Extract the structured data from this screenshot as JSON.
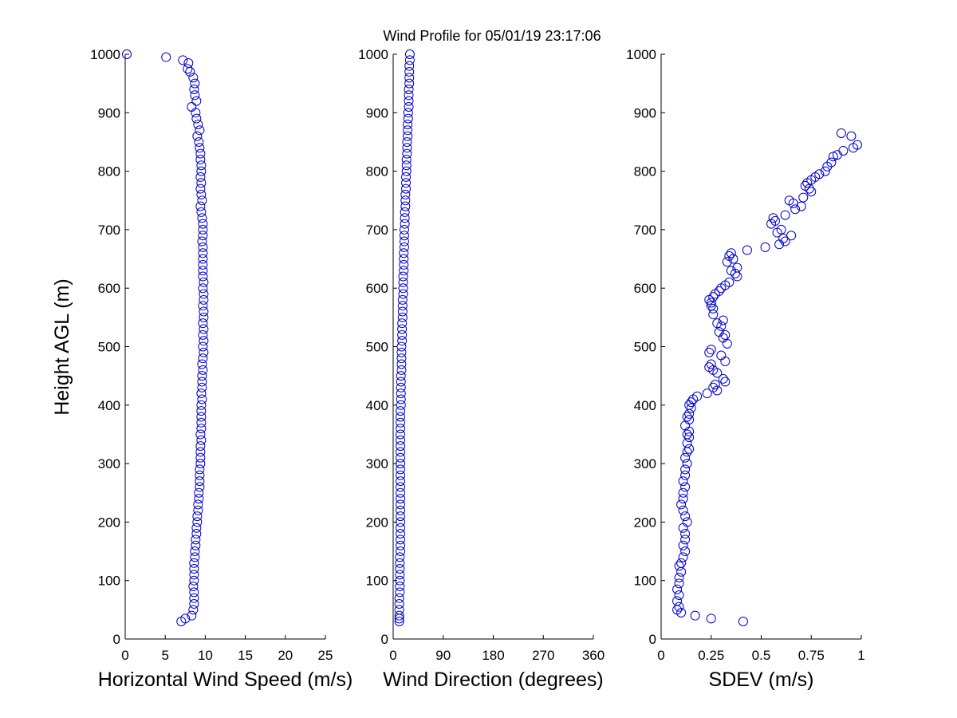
{
  "chart_data": {
    "title": "Wind Profile for  05/01/19 23:17:06",
    "ylabel": "Height AGL (m)",
    "marker_color": "#0000cc",
    "panels": [
      {
        "type": "scatter",
        "xlabel": "Horizontal Wind Speed (m/s)",
        "xlim": [
          0,
          25
        ],
        "xticks": [
          "0",
          "5",
          "10",
          "15",
          "20",
          "25"
        ],
        "ylim": [
          0,
          1000
        ],
        "yticks": [
          "0",
          "100",
          "200",
          "300",
          "400",
          "500",
          "600",
          "700",
          "800",
          "900",
          "1000"
        ],
        "y": [
          1000,
          995,
          990,
          985,
          975,
          970,
          960,
          950,
          940,
          930,
          920,
          910,
          900,
          890,
          880,
          870,
          860,
          850,
          840,
          830,
          820,
          810,
          800,
          790,
          780,
          770,
          760,
          750,
          740,
          730,
          720,
          710,
          700,
          690,
          680,
          670,
          660,
          650,
          640,
          630,
          620,
          610,
          600,
          590,
          580,
          570,
          560,
          550,
          540,
          530,
          520,
          510,
          500,
          490,
          480,
          470,
          460,
          450,
          440,
          430,
          420,
          410,
          400,
          390,
          380,
          370,
          360,
          350,
          340,
          330,
          320,
          310,
          300,
          290,
          280,
          270,
          260,
          250,
          240,
          230,
          220,
          210,
          200,
          190,
          180,
          170,
          160,
          150,
          140,
          130,
          120,
          110,
          100,
          90,
          80,
          70,
          60,
          50,
          40,
          35,
          30
        ],
        "x": [
          0.2,
          5.1,
          7.2,
          7.9,
          7.8,
          8.1,
          8.5,
          8.7,
          8.6,
          8.7,
          8.9,
          8.3,
          8.8,
          8.9,
          9.1,
          9.3,
          9.0,
          9.2,
          9.3,
          9.4,
          9.4,
          9.5,
          9.5,
          9.4,
          9.5,
          9.4,
          9.5,
          9.6,
          9.4,
          9.5,
          9.6,
          9.7,
          9.7,
          9.7,
          9.6,
          9.7,
          9.7,
          9.7,
          9.7,
          9.7,
          9.7,
          9.8,
          9.7,
          9.8,
          9.8,
          9.7,
          9.8,
          9.8,
          9.7,
          9.8,
          9.7,
          9.8,
          9.7,
          9.8,
          9.7,
          9.6,
          9.7,
          9.6,
          9.6,
          9.6,
          9.5,
          9.6,
          9.5,
          9.5,
          9.5,
          9.5,
          9.5,
          9.4,
          9.5,
          9.4,
          9.4,
          9.4,
          9.4,
          9.3,
          9.3,
          9.3,
          9.3,
          9.2,
          9.2,
          9.1,
          9.1,
          9.0,
          9.0,
          8.9,
          8.9,
          8.8,
          8.8,
          8.7,
          8.7,
          8.6,
          8.6,
          8.6,
          8.6,
          8.5,
          8.6,
          8.6,
          8.6,
          8.5,
          8.3,
          7.5,
          7.0
        ]
      },
      {
        "type": "scatter",
        "xlabel": "Wind Direction (degrees)",
        "xlim": [
          0,
          360
        ],
        "xticks": [
          "0",
          "90",
          "180",
          "270",
          "360"
        ],
        "ylim": [
          0,
          1000
        ],
        "yticks": [
          "0",
          "100",
          "200",
          "300",
          "400",
          "500",
          "600",
          "700",
          "800",
          "900",
          "1000"
        ],
        "y": [
          1000,
          990,
          980,
          970,
          960,
          950,
          940,
          930,
          920,
          910,
          900,
          890,
          880,
          870,
          860,
          850,
          840,
          830,
          820,
          810,
          800,
          790,
          780,
          770,
          760,
          750,
          740,
          730,
          720,
          710,
          700,
          690,
          680,
          670,
          660,
          650,
          640,
          630,
          620,
          610,
          600,
          590,
          580,
          570,
          560,
          550,
          540,
          530,
          520,
          510,
          500,
          490,
          480,
          470,
          460,
          450,
          440,
          430,
          420,
          410,
          400,
          390,
          380,
          370,
          360,
          350,
          340,
          330,
          320,
          310,
          300,
          290,
          280,
          270,
          260,
          250,
          240,
          230,
          220,
          210,
          200,
          190,
          180,
          170,
          160,
          150,
          140,
          130,
          120,
          110,
          100,
          90,
          80,
          70,
          60,
          50,
          40,
          35,
          30
        ],
        "x": [
          30,
          30,
          29,
          29,
          29,
          29,
          28,
          28,
          28,
          28,
          27,
          27,
          26,
          26,
          26,
          25,
          25,
          25,
          24,
          24,
          24,
          23,
          23,
          23,
          22,
          22,
          22,
          21,
          21,
          21,
          20,
          20,
          20,
          20,
          19,
          19,
          19,
          19,
          18,
          18,
          18,
          18,
          17,
          17,
          17,
          17,
          16,
          16,
          16,
          16,
          15,
          15,
          15,
          15,
          15,
          14,
          14,
          14,
          14,
          14,
          14,
          13,
          13,
          13,
          13,
          13,
          13,
          13,
          13,
          13,
          13,
          13,
          13,
          13,
          13,
          13,
          13,
          13,
          13,
          13,
          13,
          13,
          13,
          13,
          13,
          13,
          12,
          12,
          12,
          12,
          12,
          12,
          12,
          11,
          11,
          11,
          11,
          11,
          11
        ]
      },
      {
        "type": "scatter",
        "xlabel": "SDEV  (m/s)",
        "xlim": [
          0,
          1
        ],
        "xticks": [
          "0",
          "0.25",
          "0.5",
          "0.75",
          "1"
        ],
        "ylim": [
          0,
          1000
        ],
        "yticks": [
          "0",
          "100",
          "200",
          "300",
          "400",
          "500",
          "600",
          "700",
          "800",
          "900",
          "1000"
        ],
        "y": [
          865,
          860,
          845,
          840,
          835,
          828,
          825,
          815,
          808,
          800,
          795,
          790,
          785,
          780,
          775,
          770,
          765,
          755,
          750,
          745,
          740,
          735,
          725,
          720,
          715,
          710,
          700,
          695,
          690,
          685,
          680,
          675,
          670,
          665,
          660,
          655,
          650,
          645,
          635,
          630,
          625,
          620,
          610,
          605,
          600,
          595,
          590,
          585,
          580,
          575,
          570,
          565,
          555,
          545,
          540,
          535,
          525,
          520,
          515,
          505,
          495,
          490,
          485,
          475,
          470,
          465,
          460,
          455,
          445,
          440,
          435,
          430,
          425,
          420,
          415,
          410,
          405,
          400,
          395,
          385,
          380,
          375,
          365,
          355,
          350,
          345,
          335,
          325,
          320,
          310,
          300,
          290,
          280,
          270,
          260,
          250,
          240,
          230,
          220,
          210,
          200,
          190,
          180,
          170,
          160,
          150,
          140,
          130,
          125,
          115,
          105,
          95,
          85,
          75,
          65,
          55,
          50,
          45,
          40,
          35,
          30
        ],
        "x": [
          0.9,
          0.95,
          0.98,
          0.96,
          0.91,
          0.88,
          0.86,
          0.85,
          0.83,
          0.82,
          0.79,
          0.77,
          0.75,
          0.73,
          0.72,
          0.74,
          0.75,
          0.71,
          0.64,
          0.66,
          0.7,
          0.67,
          0.62,
          0.56,
          0.57,
          0.55,
          0.6,
          0.58,
          0.65,
          0.61,
          0.62,
          0.59,
          0.52,
          0.43,
          0.35,
          0.34,
          0.36,
          0.33,
          0.38,
          0.35,
          0.37,
          0.38,
          0.34,
          0.32,
          0.3,
          0.29,
          0.27,
          0.26,
          0.24,
          0.25,
          0.25,
          0.26,
          0.26,
          0.31,
          0.28,
          0.3,
          0.29,
          0.32,
          0.31,
          0.33,
          0.25,
          0.24,
          0.3,
          0.32,
          0.25,
          0.24,
          0.26,
          0.28,
          0.31,
          0.32,
          0.27,
          0.26,
          0.28,
          0.23,
          0.18,
          0.16,
          0.15,
          0.14,
          0.15,
          0.14,
          0.13,
          0.14,
          0.12,
          0.14,
          0.13,
          0.14,
          0.13,
          0.14,
          0.13,
          0.12,
          0.13,
          0.12,
          0.12,
          0.11,
          0.12,
          0.11,
          0.11,
          0.1,
          0.11,
          0.12,
          0.13,
          0.11,
          0.12,
          0.12,
          0.11,
          0.12,
          0.11,
          0.1,
          0.09,
          0.1,
          0.09,
          0.09,
          0.08,
          0.09,
          0.08,
          0.09,
          0.08,
          0.1,
          0.17,
          0.25,
          0.41
        ]
      }
    ]
  }
}
